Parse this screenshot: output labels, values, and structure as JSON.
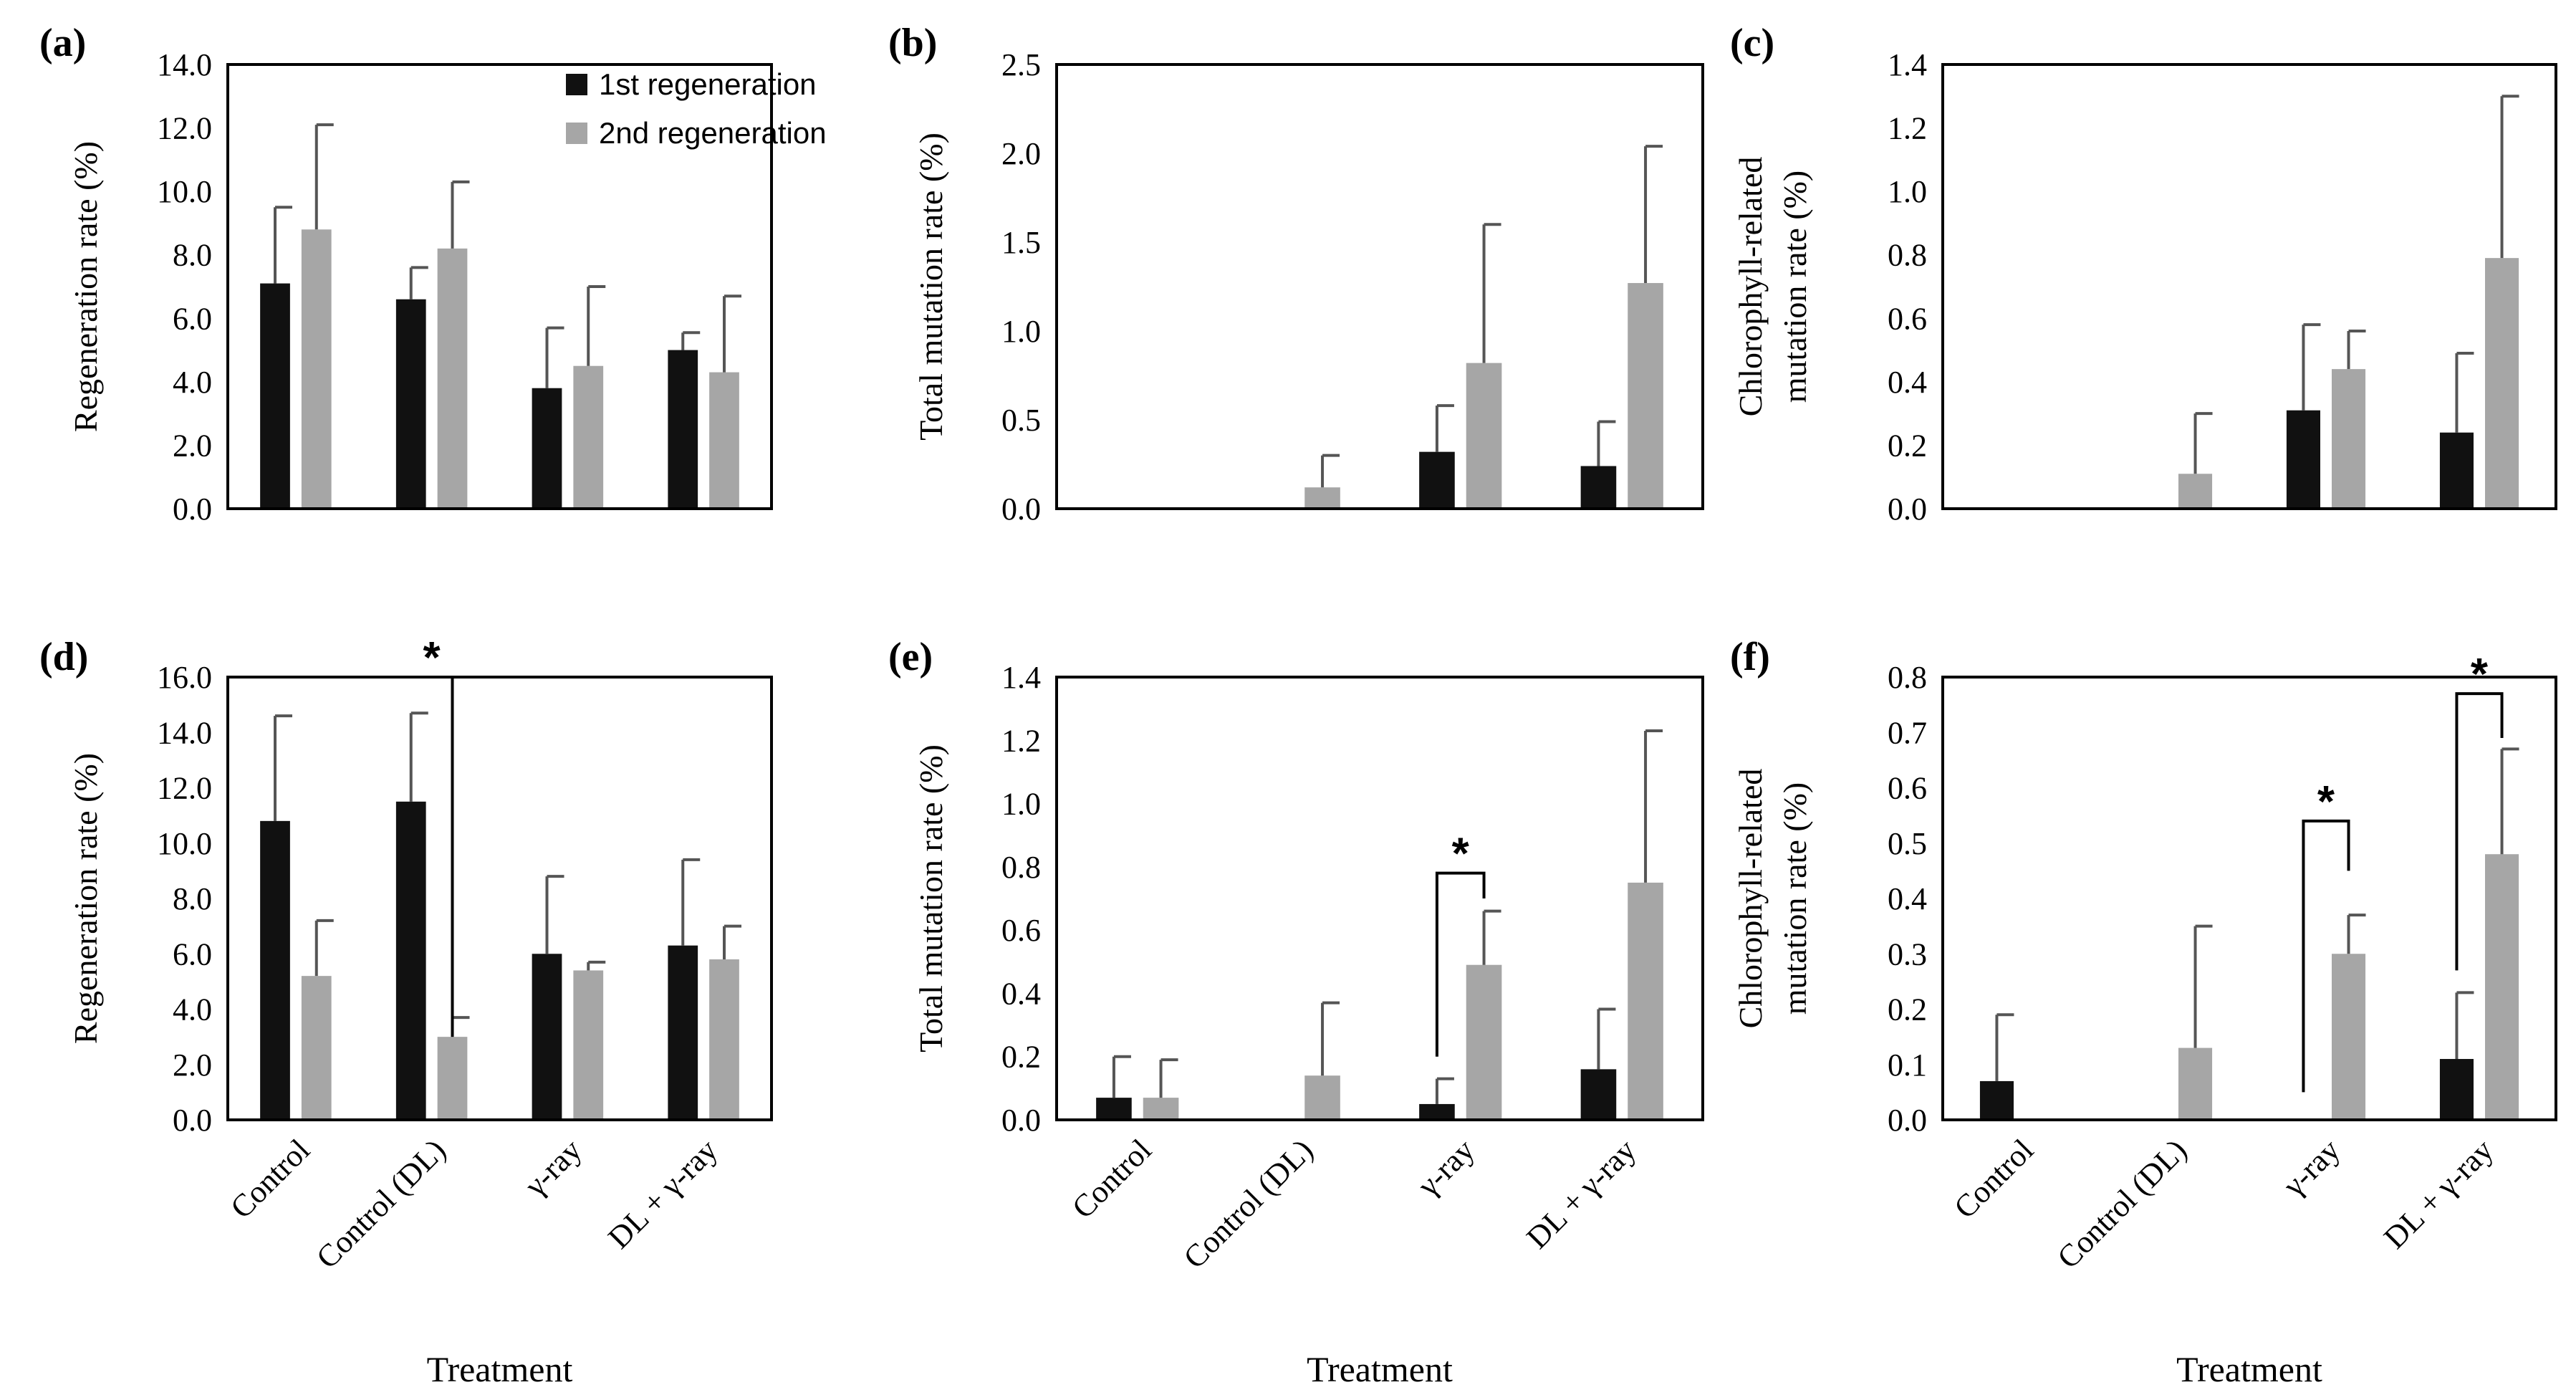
{
  "colors": {
    "first": "#111111",
    "second": "#a6a6a6",
    "axis": "#000000",
    "error": "#555555"
  },
  "legend": {
    "first": "1st regeneration",
    "second": "2nd regeneration"
  },
  "chart_data": [
    {
      "panel": "(a)",
      "type": "bar",
      "ylabel": [
        "Regeneration rate (%)"
      ],
      "xlabel": "",
      "ylim": [
        0,
        14
      ],
      "ticks": [
        "0.0",
        "2.0",
        "4.0",
        "6.0",
        "8.0",
        "10.0",
        "12.0",
        "14.0"
      ],
      "categories": [
        "Control",
        "Control (DL)",
        "γ-ray",
        "DL + γ-ray"
      ],
      "show_categories": false,
      "series": [
        {
          "name": "1st regeneration",
          "values": [
            7.1,
            6.6,
            3.8,
            5.0
          ],
          "errors": [
            2.4,
            1.0,
            1.9,
            0.55
          ]
        },
        {
          "name": "2nd regeneration",
          "values": [
            8.8,
            8.2,
            4.5,
            4.3
          ],
          "errors": [
            3.3,
            2.1,
            2.5,
            2.4
          ]
        }
      ],
      "legend": "top-right",
      "annotations": []
    },
    {
      "panel": "(b)",
      "type": "bar",
      "ylabel": [
        "Total mutation rate (%)"
      ],
      "xlabel": "",
      "ylim": [
        0,
        2.5
      ],
      "ticks": [
        "0.0",
        "0.5",
        "1.0",
        "1.5",
        "2.0",
        "2.5"
      ],
      "categories": [
        "Control",
        "Control (DL)",
        "γ-ray",
        "DL + γ-ray"
      ],
      "show_categories": false,
      "series": [
        {
          "name": "1st regeneration",
          "values": [
            0,
            0,
            0.32,
            0.24
          ],
          "errors": [
            0,
            0,
            0.26,
            0.25
          ]
        },
        {
          "name": "2nd regeneration",
          "values": [
            0,
            0.12,
            0.82,
            1.27
          ],
          "errors": [
            0,
            0.18,
            0.78,
            0.77
          ]
        }
      ],
      "legend": "none",
      "annotations": []
    },
    {
      "panel": "(c)",
      "type": "bar",
      "ylabel": [
        "Chlorophyll-related",
        "mutation rate (%)"
      ],
      "xlabel": "",
      "ylim": [
        0,
        1.4
      ],
      "ticks": [
        "0.0",
        "0.2",
        "0.4",
        "0.6",
        "0.8",
        "1.0",
        "1.2",
        "1.4"
      ],
      "categories": [
        "Control",
        "Control (DL)",
        "γ-ray",
        "DL + γ-ray"
      ],
      "show_categories": false,
      "series": [
        {
          "name": "1st regeneration",
          "values": [
            0,
            0,
            0.31,
            0.24
          ],
          "errors": [
            0,
            0,
            0.27,
            0.25
          ]
        },
        {
          "name": "2nd regeneration",
          "values": [
            0,
            0.11,
            0.44,
            0.79
          ],
          "errors": [
            0,
            0.19,
            0.12,
            0.51
          ]
        }
      ],
      "legend": "none",
      "annotations": []
    },
    {
      "panel": "(d)",
      "type": "bar",
      "ylabel": [
        "Regeneration rate (%)"
      ],
      "xlabel": "Treatment",
      "ylim": [
        0,
        16
      ],
      "ticks": [
        "0.0",
        "2.0",
        "4.0",
        "6.0",
        "8.0",
        "10.0",
        "12.0",
        "14.0",
        "16.0"
      ],
      "categories": [
        "Control",
        "Control (DL)",
        "γ-ray",
        "DL + γ-ray"
      ],
      "show_categories": true,
      "series": [
        {
          "name": "1st regeneration",
          "values": [
            10.8,
            11.5,
            6.0,
            6.3
          ],
          "errors": [
            3.8,
            3.2,
            2.8,
            3.1
          ]
        },
        {
          "name": "2nd regeneration",
          "values": [
            5.2,
            3.0,
            5.4,
            5.8
          ],
          "errors": [
            2.0,
            0.7,
            0.3,
            1.2
          ]
        }
      ],
      "legend": "none",
      "annotations": [
        {
          "text": "*",
          "group": 1,
          "y_top": 16.0,
          "y_left": 16.0,
          "y_right": 3.0
        }
      ]
    },
    {
      "panel": "(e)",
      "type": "bar",
      "ylabel": [
        "Total mutation rate (%)"
      ],
      "xlabel": "Treatment",
      "ylim": [
        0,
        1.4
      ],
      "ticks": [
        "0.0",
        "0.2",
        "0.4",
        "0.6",
        "0.8",
        "1.0",
        "1.2",
        "1.4"
      ],
      "categories": [
        "Control",
        "Control (DL)",
        "γ-ray",
        "DL + γ-ray"
      ],
      "show_categories": true,
      "series": [
        {
          "name": "1st regeneration",
          "values": [
            0.07,
            0,
            0.05,
            0.16
          ],
          "errors": [
            0.13,
            0,
            0.08,
            0.19
          ]
        },
        {
          "name": "2nd regeneration",
          "values": [
            0.07,
            0.14,
            0.49,
            0.75
          ],
          "errors": [
            0.12,
            0.23,
            0.17,
            0.48
          ]
        }
      ],
      "legend": "none",
      "annotations": [
        {
          "text": "*",
          "group": 2,
          "y_top": 0.78,
          "y_left": 0.2,
          "y_right": 0.7
        }
      ]
    },
    {
      "panel": "(f)",
      "type": "bar",
      "ylabel": [
        "Chlorophyll-related",
        "mutation rate (%)"
      ],
      "xlabel": "Treatment",
      "ylim": [
        0,
        0.8
      ],
      "ticks": [
        "0.0",
        "0.1",
        "0.2",
        "0.3",
        "0.4",
        "0.5",
        "0.6",
        "0.7",
        "0.8"
      ],
      "categories": [
        "Control",
        "Control (DL)",
        "γ-ray",
        "DL + γ-ray"
      ],
      "show_categories": true,
      "series": [
        {
          "name": "1st regeneration",
          "values": [
            0.07,
            0,
            0,
            0.11
          ],
          "errors": [
            0.12,
            0,
            0,
            0.12
          ]
        },
        {
          "name": "2nd regeneration",
          "values": [
            0,
            0.13,
            0.3,
            0.48
          ],
          "errors": [
            0,
            0.22,
            0.07,
            0.19
          ]
        }
      ],
      "legend": "none",
      "annotations": [
        {
          "text": "*",
          "group": 2,
          "y_top": 0.54,
          "y_left": 0.05,
          "y_right": 0.45
        },
        {
          "text": "*",
          "group": 3,
          "y_top": 0.77,
          "y_left": 0.27,
          "y_right": 0.69
        }
      ]
    }
  ]
}
